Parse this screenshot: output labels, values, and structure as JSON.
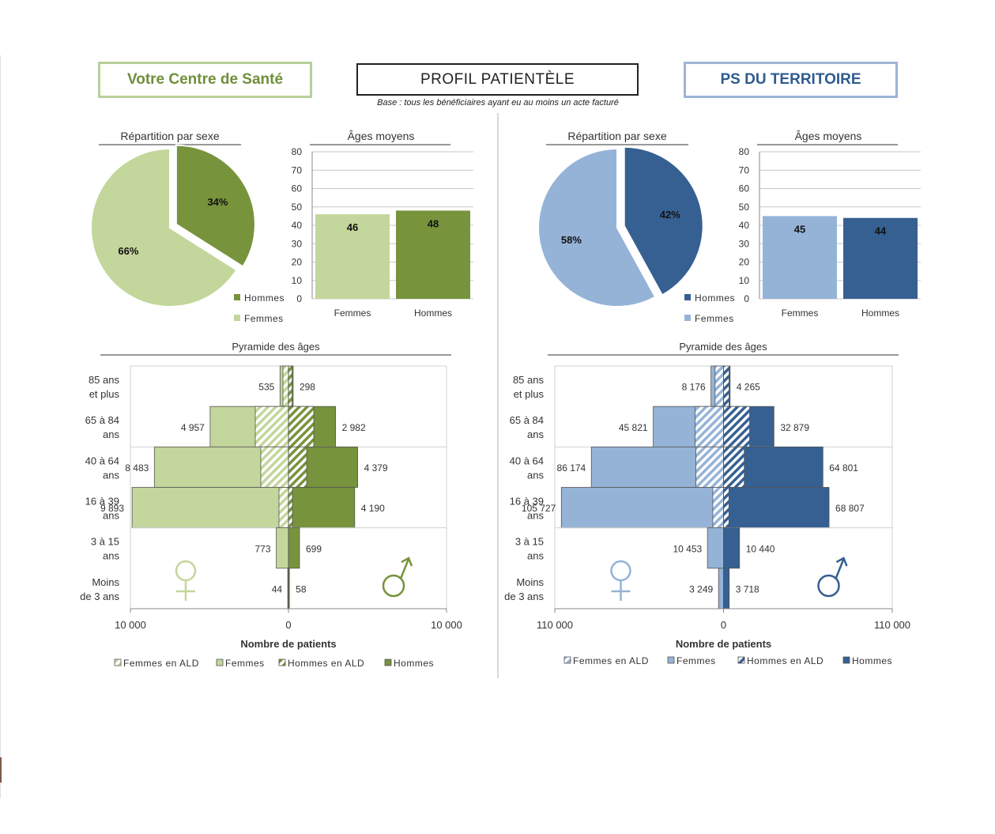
{
  "header": {
    "left_title": "Votre Centre de Santé",
    "center_title": "PROFIL PATIENTÈLE",
    "center_subtitle": "Base : tous les bénéficiaires ayant eu au moins un acte facturé",
    "right_title": "PS DU TERRITOIRE"
  },
  "colors": {
    "green_light": "#c3d69b",
    "green_dark": "#77933c",
    "blue_light": "#95b3d7",
    "blue_dark": "#366092"
  },
  "panels": [
    {
      "pie": {
        "title": "Répartition par sexe",
        "slices": [
          {
            "label": "Hommes",
            "value": 34,
            "text": "34%"
          },
          {
            "label": "Femmes",
            "value": 66,
            "text": "66%"
          }
        ],
        "legend": [
          "Hommes",
          "Femmes"
        ]
      },
      "bar": {
        "title": "Âges moyens",
        "categories": [
          "Femmes",
          "Hommes"
        ],
        "values": [
          46,
          48
        ],
        "ylim": [
          0,
          80
        ],
        "yticks": [
          "0",
          "10",
          "20",
          "30",
          "40",
          "50",
          "60",
          "70",
          "80"
        ]
      },
      "pyramid": {
        "title": "Pyramide des âges",
        "xlabel": "Nombre de patients",
        "xmax": 10000,
        "xticks": [
          "10 000",
          "0",
          "10 000"
        ],
        "age_labels": [
          [
            "85 ans",
            "et plus"
          ],
          [
            "65 à 84",
            "ans"
          ],
          [
            "40 à 64",
            "ans"
          ],
          [
            "16 à 39",
            "ans"
          ],
          [
            "3 à 15",
            "ans"
          ],
          [
            "Moins",
            "de 3 ans"
          ]
        ],
        "femmes": [
          535,
          4957,
          8483,
          9893,
          773,
          44
        ],
        "hommes": [
          298,
          2982,
          4379,
          4190,
          699,
          58
        ],
        "femmes_ald": [
          350,
          2100,
          1750,
          600,
          0,
          0
        ],
        "hommes_ald": [
          230,
          1600,
          1150,
          250,
          0,
          0
        ],
        "femmes_labels": [
          "535",
          "4 957",
          "8 483",
          "9 893",
          "773",
          "44"
        ],
        "hommes_labels": [
          "298",
          "2 982",
          "4 379",
          "4 190",
          "699",
          "58"
        ],
        "legend": [
          "Femmes en ALD",
          "Femmes",
          "Hommes en ALD",
          "Hommes"
        ]
      }
    },
    {
      "pie": {
        "title": "Répartition par sexe",
        "slices": [
          {
            "label": "Hommes",
            "value": 42,
            "text": "42%"
          },
          {
            "label": "Femmes",
            "value": 58,
            "text": "58%"
          }
        ],
        "legend": [
          "Hommes",
          "Femmes"
        ]
      },
      "bar": {
        "title": "Âges moyens",
        "categories": [
          "Femmes",
          "Hommes"
        ],
        "values": [
          45,
          44
        ],
        "ylim": [
          0,
          80
        ],
        "yticks": [
          "0",
          "10",
          "20",
          "30",
          "40",
          "50",
          "60",
          "70",
          "80"
        ]
      },
      "pyramid": {
        "title": "Pyramide des âges",
        "xlabel": "Nombre de patients",
        "xmax": 110000,
        "xticks": [
          "110 000",
          "0",
          "110 000"
        ],
        "age_labels": [
          [
            "85 ans",
            "et plus"
          ],
          [
            "65 à 84",
            "ans"
          ],
          [
            "40 à 64",
            "ans"
          ],
          [
            "16 à 39",
            "ans"
          ],
          [
            "3 à 15",
            "ans"
          ],
          [
            "Moins",
            "de 3 ans"
          ]
        ],
        "femmes": [
          8176,
          45821,
          86174,
          105727,
          10453,
          3249
        ],
        "hommes": [
          4265,
          32879,
          64801,
          68807,
          10440,
          3718
        ],
        "femmes_ald": [
          5500,
          18500,
          18000,
          7000,
          0,
          0
        ],
        "hommes_ald": [
          3600,
          17000,
          13500,
          3500,
          0,
          0
        ],
        "femmes_labels": [
          "8 176",
          "45 821",
          "86 174",
          "105 727",
          "10 453",
          "3 249"
        ],
        "hommes_labels": [
          "4 265",
          "32 879",
          "64 801",
          "68 807",
          "10 440",
          "3 718"
        ],
        "legend": [
          "Femmes en ALD",
          "Femmes",
          "Hommes en ALD",
          "Hommes"
        ]
      }
    }
  ]
}
